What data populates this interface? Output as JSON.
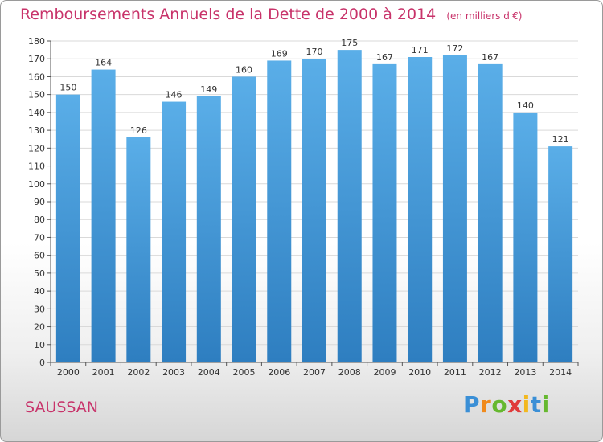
{
  "header": {
    "title": "Remboursements Annuels de la Dette de 2000 à 2014",
    "unit": "(en milliers d'€)"
  },
  "footer": {
    "city": "SAUSSAN",
    "brand": "Proxiti"
  },
  "colors": {
    "accent": "#c8336a",
    "bar_top": "#5aaee8",
    "bar_bottom": "#2e7ec0",
    "grid": "#d9d9d9",
    "axis": "#555555"
  },
  "brand_letters": [
    {
      "ch": "P",
      "color": "#3a8fd6"
    },
    {
      "ch": "r",
      "color": "#f08a1c"
    },
    {
      "ch": "o",
      "color": "#66b82f"
    },
    {
      "ch": "x",
      "color": "#e03b3b"
    },
    {
      "ch": "i",
      "color": "#f2b81f"
    },
    {
      "ch": "t",
      "color": "#3a8fd6"
    },
    {
      "ch": "i",
      "color": "#66b82f"
    }
  ],
  "chart_data": {
    "type": "bar",
    "title": "Remboursements Annuels de la Dette de 2000 à 2014",
    "xlabel": "",
    "ylabel": "",
    "categories": [
      "2000",
      "2001",
      "2002",
      "2003",
      "2004",
      "2005",
      "2006",
      "2007",
      "2008",
      "2009",
      "2010",
      "2011",
      "2012",
      "2013",
      "2014"
    ],
    "values": [
      150,
      164,
      126,
      146,
      149,
      160,
      169,
      170,
      175,
      167,
      171,
      172,
      167,
      140,
      121
    ],
    "ylim": [
      0,
      180
    ],
    "ytick_step": 10,
    "grid": true,
    "data_labels": true
  }
}
